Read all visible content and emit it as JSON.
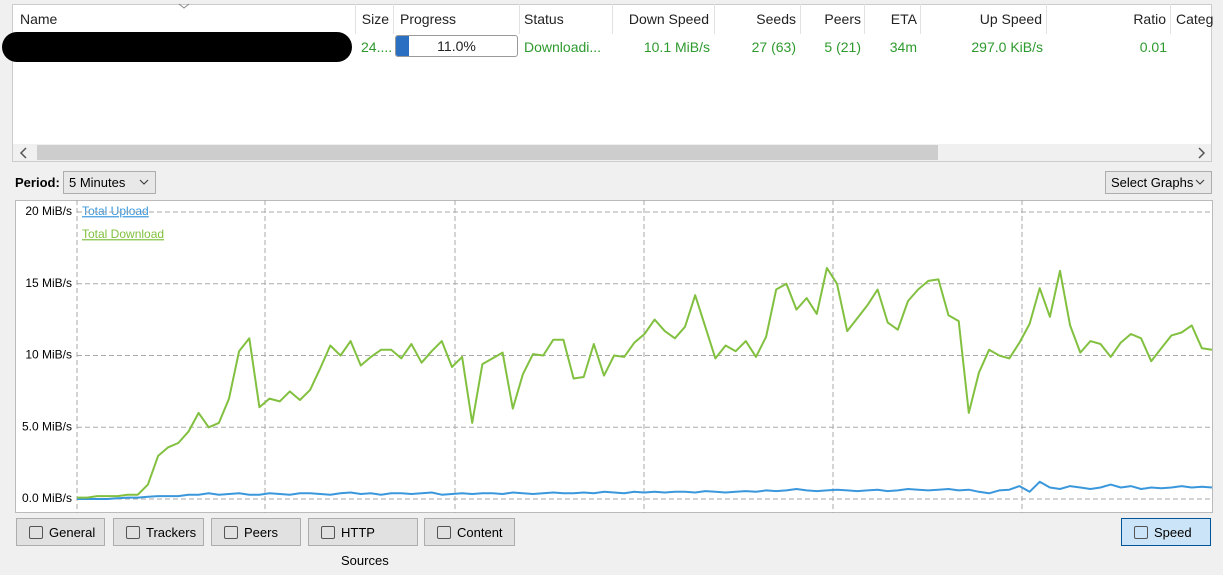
{
  "table": {
    "columns": [
      "Name",
      "Size",
      "Progress",
      "Status",
      "Down Speed",
      "Seeds",
      "Peers",
      "ETA",
      "Up Speed",
      "Ratio",
      "Categ"
    ],
    "rows": [
      {
        "size": "24....",
        "progress": {
          "value": 11,
          "label": "11.0%"
        },
        "status": "Downloadi...",
        "down_speed": "10.1 MiB/s",
        "seeds": "27 (63)",
        "peers": "5 (21)",
        "eta": "34m",
        "up_speed": "297.0 KiB/s",
        "ratio": "0.01"
      }
    ]
  },
  "period": {
    "label": "Period:",
    "value": "5 Minutes"
  },
  "select_graphs": "Select Graphs",
  "chart_data": {
    "type": "line",
    "series": [
      {
        "name": "Total Upload",
        "color": "#3b97dc",
        "values": [
          0,
          0,
          0,
          0,
          0.05,
          0.1,
          0.1,
          0.15,
          0.2,
          0.2,
          0.2,
          0.3,
          0.3,
          0.4,
          0.3,
          0.35,
          0.4,
          0.3,
          0.3,
          0.4,
          0.35,
          0.3,
          0.4,
          0.4,
          0.35,
          0.3,
          0.4,
          0.45,
          0.35,
          0.4,
          0.3,
          0.4,
          0.4,
          0.35,
          0.4,
          0.45,
          0.3,
          0.35,
          0.4,
          0.35,
          0.4,
          0.4,
          0.35,
          0.45,
          0.4,
          0.35,
          0.4,
          0.45,
          0.4,
          0.4,
          0.45,
          0.4,
          0.5,
          0.45,
          0.4,
          0.5,
          0.45,
          0.5,
          0.45,
          0.5,
          0.5,
          0.45,
          0.55,
          0.5,
          0.45,
          0.5,
          0.55,
          0.5,
          0.6,
          0.55,
          0.6,
          0.7,
          0.6,
          0.55,
          0.6,
          0.65,
          0.6,
          0.55,
          0.6,
          0.65,
          0.55,
          0.6,
          0.7,
          0.65,
          0.6,
          0.65,
          0.7,
          0.6,
          0.65,
          0.5,
          0.4,
          0.6,
          0.65,
          0.9,
          0.5,
          1.2,
          0.8,
          0.7,
          0.9,
          0.8,
          0.7,
          0.8,
          1.0,
          0.8,
          0.9,
          0.7,
          0.8,
          0.75,
          0.8,
          0.9,
          0.8,
          0.85,
          0.8
        ]
      },
      {
        "name": "Total Download",
        "color": "#82c040",
        "values": [
          0.1,
          0.1,
          0.2,
          0.2,
          0.2,
          0.3,
          0.3,
          1.0,
          3.0,
          3.6,
          3.9,
          4.7,
          6.0,
          5.0,
          5.3,
          7.0,
          10.3,
          11.2,
          6.4,
          7.0,
          6.8,
          7.5,
          6.9,
          7.6,
          9.1,
          10.7,
          10.0,
          11.0,
          9.3,
          9.9,
          10.4,
          10.4,
          9.8,
          10.8,
          9.5,
          10.3,
          11.0,
          9.2,
          9.9,
          5.3,
          9.4,
          9.8,
          10.2,
          6.3,
          8.7,
          10.1,
          10.0,
          11.1,
          11.1,
          8.4,
          8.5,
          10.8,
          8.6,
          10.0,
          9.9,
          10.9,
          11.5,
          12.5,
          11.7,
          11.2,
          12.0,
          14.2,
          12.0,
          9.8,
          10.7,
          10.3,
          11.0,
          9.9,
          11.3,
          14.6,
          15.0,
          13.2,
          14.0,
          12.9,
          16.1,
          15.0,
          11.7,
          12.6,
          13.5,
          14.6,
          12.3,
          11.8,
          13.8,
          14.6,
          15.2,
          15.3,
          12.8,
          12.4,
          6.0,
          8.8,
          10.4,
          10.0,
          9.8,
          10.9,
          12.2,
          14.7,
          12.7,
          15.9,
          12.1,
          10.2,
          11.0,
          10.8,
          9.9,
          10.9,
          11.5,
          11.2,
          9.6,
          10.5,
          11.4,
          11.6,
          12.1,
          10.5,
          10.4
        ]
      }
    ],
    "ylim": [
      0,
      20
    ],
    "yticks": [
      {
        "value": 0,
        "label": "0.0 MiB/s"
      },
      {
        "value": 5,
        "label": "5.0 MiB/s"
      },
      {
        "value": 10,
        "label": "10 MiB/s"
      },
      {
        "value": 15,
        "label": "15 MiB/s"
      },
      {
        "value": 20,
        "label": "20 MiB/s"
      }
    ],
    "grid": true
  },
  "tabs": [
    "General",
    "Trackers",
    "Peers",
    "HTTP Sources",
    "Content"
  ],
  "speed_tab": "Speed"
}
